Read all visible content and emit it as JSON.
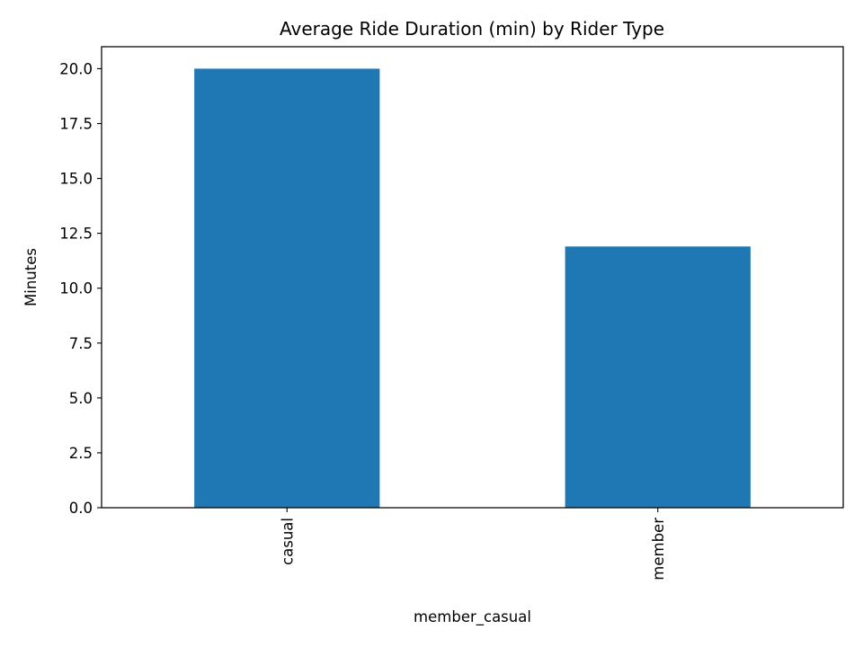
{
  "chart_data": {
    "type": "bar",
    "title": "Average Ride Duration (min) by Rider Type",
    "xlabel": "member_casual",
    "ylabel": "Minutes",
    "categories": [
      "casual",
      "member"
    ],
    "values": [
      20.0,
      11.9
    ],
    "ylim": [
      0,
      21
    ],
    "yticks": [
      0.0,
      2.5,
      5.0,
      7.5,
      10.0,
      12.5,
      15.0,
      17.5,
      20.0
    ],
    "ytick_labels": [
      "0.0",
      "2.5",
      "5.0",
      "7.5",
      "10.0",
      "12.5",
      "15.0",
      "17.5",
      "20.0"
    ],
    "grid": false,
    "legend": "none",
    "bar_color": "#1f77b4"
  }
}
